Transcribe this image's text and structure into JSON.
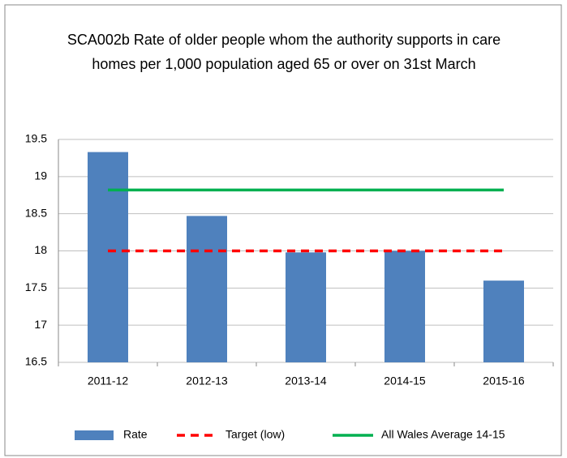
{
  "chart_data": {
    "type": "bar",
    "title": "SCA002b Rate of older people whom the authority supports in care homes per 1,000 population aged 65  or over on 31st March",
    "categories": [
      "2011-12",
      "2012-13",
      "2013-14",
      "2014-15",
      "2015-16"
    ],
    "series": [
      {
        "name": "Rate",
        "type": "bar",
        "color": "#4f81bd",
        "values": [
          19.33,
          18.47,
          17.98,
          18.0,
          17.6
        ]
      },
      {
        "name": "Target (low)",
        "type": "line",
        "dashed": true,
        "color": "#ff0000",
        "values": [
          18,
          18,
          18,
          18,
          18
        ]
      },
      {
        "name": "All Wales Average 14-15",
        "type": "line",
        "dashed": false,
        "color": "#00b050",
        "values": [
          18.82,
          18.82,
          18.82,
          18.82,
          18.82
        ]
      }
    ],
    "ylim": [
      16.5,
      19.5
    ],
    "yticks": [
      16.5,
      17,
      17.5,
      18,
      18.5,
      19,
      19.5
    ],
    "grid": true,
    "legend": "bottom"
  }
}
